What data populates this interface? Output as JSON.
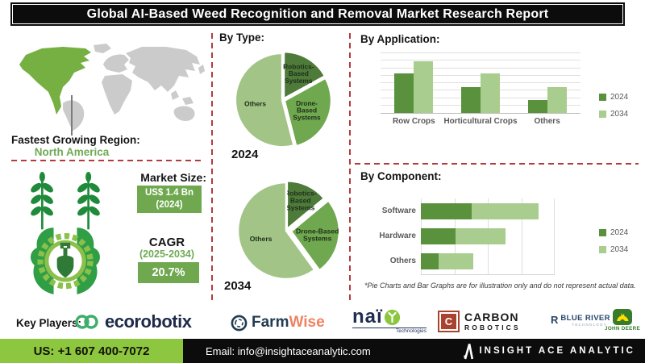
{
  "title": "Global AI-Based Weed Recognition and Removal Market Research Report",
  "region": {
    "label": "Fastest Growing Region:",
    "value": "North America"
  },
  "market_size": {
    "label": "Market Size:",
    "value": "US$ 1.4 Bn",
    "year": "(2024)"
  },
  "cagr": {
    "label": "CAGR",
    "period": "(2025-2034)",
    "value": "20.7%"
  },
  "sections": {
    "by_type": "By Type:",
    "by_application": "By Application:",
    "by_component": "By Component:"
  },
  "footnote": "*Pie Charts and Bar Graphs are for illustration only and do not represent actual data.",
  "key_players": {
    "label": "Key Players:",
    "companies": [
      {
        "id": "ecorobotix",
        "text": "ecorobotix"
      },
      {
        "id": "farmwise",
        "text_primary": "Farm",
        "text_secondary": "Wise"
      },
      {
        "id": "naio-technologies",
        "text": "naï",
        "subtext": "Technologies"
      },
      {
        "id": "carbon-robotics",
        "icon_letter": "C",
        "line1": "CARBON",
        "line2": "ROBOTICS"
      },
      {
        "id": "blue-river-technology",
        "icon_letter": "R",
        "line1": "BLUE RIVER",
        "line2": "TECHNOLOGY"
      },
      {
        "id": "john-deere",
        "text": "JOHN DEERE"
      }
    ]
  },
  "footer": {
    "phone": "US: +1 607 400-7072",
    "email": "Email: info@insightaceanalytic.com",
    "brand": "INSIGHT ACE ANALYTIC"
  },
  "colors": {
    "pie_dark": "#4e7b3a",
    "pie_mid": "#6fa84f",
    "pie_light": "#a2c487",
    "bar_2024": "#59913c",
    "bar_2034": "#a9cc8f",
    "dashed_line": "#b43b3b",
    "map_gray": "#cbcbcb",
    "map_highlight": "#76b043",
    "footer_green": "#8dc63f",
    "box_green": "#6fa84f"
  },
  "chart_data": [
    {
      "id": "pie-2024",
      "type": "pie",
      "title": "2024",
      "start_angle_deg": -90,
      "slices": [
        {
          "label": "Robotics-\nBased\nSystems",
          "value": 17,
          "color": "#4e7b3a",
          "explode": 2,
          "label_r": 0.62
        },
        {
          "label": "Drone-\nBased\nSystems",
          "value": 29,
          "color": "#6fa84f",
          "explode": 2,
          "label_r": 0.52
        },
        {
          "label": "Others",
          "value": 54,
          "color": "#a2c487",
          "explode": 1,
          "label_r": 0.58
        }
      ]
    },
    {
      "id": "pie-2034",
      "type": "pie",
      "title": "2034",
      "start_angle_deg": -90,
      "slices": [
        {
          "label": "Robotics-\nBased\nSystems",
          "value": 14,
          "color": "#4e7b3a",
          "explode": 2,
          "label_r": 0.66
        },
        {
          "label": "Drone-Based\nSystems",
          "value": 26,
          "color": "#6fa84f",
          "explode": 6,
          "label_r": 0.55
        },
        {
          "label": "Others",
          "value": 60,
          "color": "#a2c487",
          "explode": 0,
          "label_r": 0.55
        }
      ]
    },
    {
      "id": "application",
      "type": "bar",
      "title": "By Application:",
      "categories": [
        "Row Crops",
        "Horticultural Crops",
        "Others"
      ],
      "series": [
        {
          "name": "2024",
          "color": "#59913c",
          "values": [
            66,
            43,
            21
          ]
        },
        {
          "name": "2034",
          "color": "#a9cc8f",
          "values": [
            87,
            66,
            43
          ]
        }
      ],
      "ylim": [
        0,
        100
      ],
      "gridline_step": 12.5,
      "legend_position": "right"
    },
    {
      "id": "component",
      "type": "stacked-horizontal-bar",
      "title": "By Component:",
      "categories": [
        "Software",
        "Hardware",
        "Others"
      ],
      "series": [
        {
          "name": "2024",
          "color": "#59913c",
          "values": [
            38,
            26,
            13
          ]
        },
        {
          "name": "2034",
          "color": "#a9cc8f",
          "values": [
            50,
            37,
            26
          ]
        }
      ],
      "xlim": [
        0,
        100
      ],
      "gridline_step": 25,
      "legend_position": "right"
    }
  ]
}
